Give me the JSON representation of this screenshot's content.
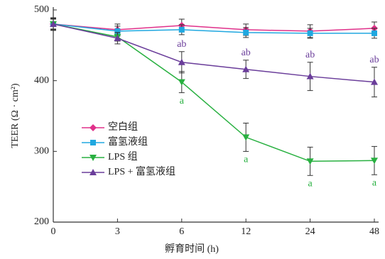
{
  "chart_data": {
    "type": "line",
    "x_label": "孵育时间 (h)",
    "y_label": "TEER (Ω · cm²)",
    "categories": [
      "0",
      "3",
      "6",
      "12",
      "24",
      "48"
    ],
    "ylim": [
      200,
      500
    ],
    "yticks": [
      200,
      300,
      400,
      500
    ],
    "legend": "left",
    "series": [
      {
        "name": "空白组",
        "color": "#e0308a",
        "marker": "diamond",
        "values": [
          480,
          472,
          478,
          472,
          470,
          474
        ],
        "errors": [
          9,
          8,
          9,
          8,
          9,
          9
        ],
        "labels": [
          null,
          null,
          null,
          null,
          null,
          null
        ]
      },
      {
        "name": "富氢液组",
        "color": "#20a8e0",
        "marker": "square",
        "values": [
          480,
          470,
          472,
          468,
          467,
          467
        ],
        "errors": [
          7,
          7,
          7,
          7,
          7,
          7
        ],
        "labels": [
          null,
          null,
          null,
          null,
          null,
          null
        ]
      },
      {
        "name": "LPS 组",
        "color": "#28b040",
        "marker": "triangle-down",
        "values": [
          480,
          462,
          398,
          320,
          286,
          287
        ],
        "errors": [
          8,
          6,
          15,
          20,
          20,
          20
        ],
        "labels": [
          null,
          null,
          "a",
          "a",
          "a",
          "a"
        ]
      },
      {
        "name": "LPS + 富氢液组",
        "color": "#6a3d9a",
        "marker": "triangle-up",
        "values": [
          480,
          460,
          426,
          416,
          406,
          398
        ],
        "errors": [
          8,
          8,
          15,
          13,
          20,
          21
        ],
        "labels": [
          null,
          null,
          "ab",
          "ab",
          "ab",
          "ab"
        ]
      }
    ]
  }
}
